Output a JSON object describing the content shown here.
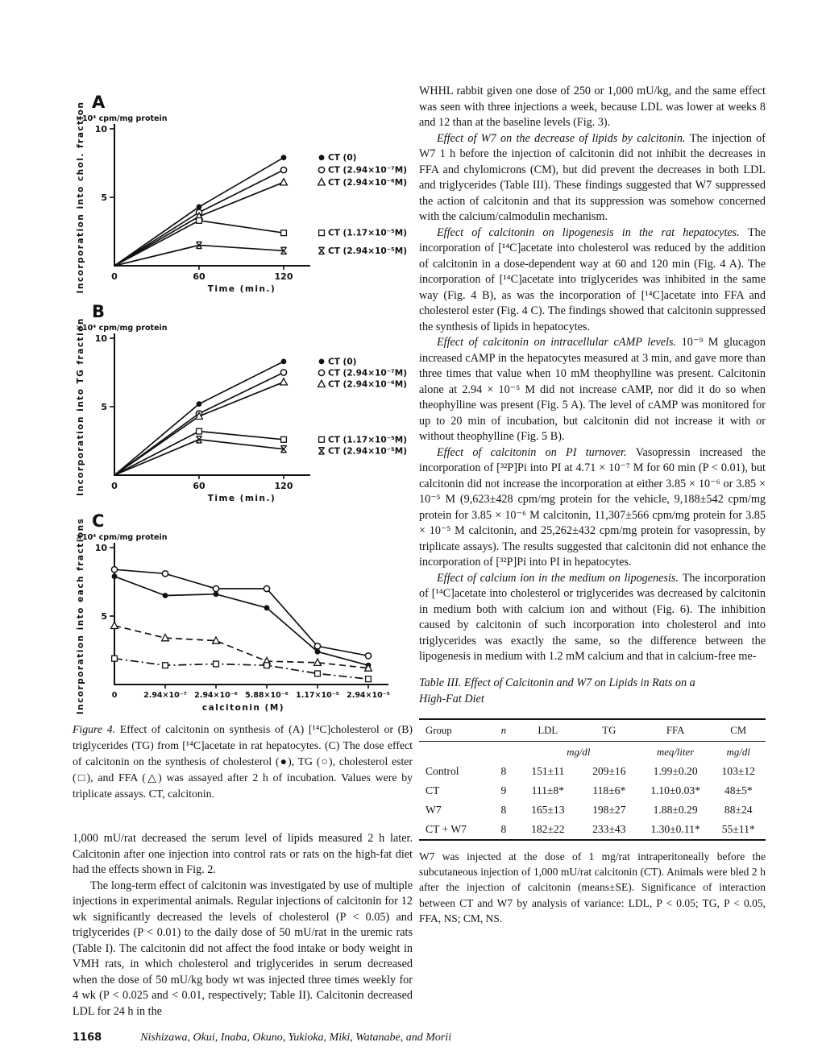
{
  "chart_data": [
    {
      "type": "line",
      "panel": "A",
      "unit_label": "×10⁴ cpm/mg protein",
      "ylabel": "Incorporation into chol. fraction",
      "xlabel": "Time (min.)",
      "x": [
        0,
        60,
        120
      ],
      "xtick_labels": [
        "0",
        "60",
        "120"
      ],
      "ylim": [
        0,
        10
      ],
      "yticks": [
        5,
        10
      ],
      "grid": false,
      "legend_position": "end-of-line",
      "series": [
        {
          "label": "CT (0)",
          "marker": "filled-circle",
          "line": "solid",
          "values": [
            0,
            4.3,
            7.9
          ]
        },
        {
          "label": "CT (2.94×10⁻⁷M)",
          "marker": "open-circle",
          "line": "solid",
          "values": [
            0,
            3.9,
            7.0
          ]
        },
        {
          "label": "CT (2.94×10⁻⁶M)",
          "marker": "open-triangle",
          "line": "solid",
          "values": [
            0,
            3.6,
            6.1
          ]
        },
        {
          "label": "CT (1.17×10⁻⁵M)",
          "marker": "open-square",
          "line": "solid",
          "values": [
            0,
            3.3,
            2.4
          ]
        },
        {
          "label": "CT (2.94×10⁻⁵M)",
          "marker": "xbar",
          "line": "solid",
          "values": [
            0,
            1.5,
            1.1
          ]
        }
      ]
    },
    {
      "type": "line",
      "panel": "B",
      "unit_label": "×10⁴ cpm/mg protein",
      "ylabel": "Incorporation into TG fraction",
      "xlabel": "Time (min.)",
      "x": [
        0,
        60,
        120
      ],
      "xtick_labels": [
        "0",
        "60",
        "120"
      ],
      "ylim": [
        0,
        10
      ],
      "yticks": [
        5,
        10
      ],
      "grid": false,
      "legend_position": "end-of-line",
      "series": [
        {
          "label": "CT (0)",
          "marker": "filled-circle",
          "line": "solid",
          "values": [
            0,
            5.2,
            8.3
          ]
        },
        {
          "label": "CT (2.94×10⁻⁷M)",
          "marker": "open-circle",
          "line": "solid",
          "values": [
            0,
            4.5,
            7.5
          ]
        },
        {
          "label": "CT (2.94×10⁻⁶M)",
          "marker": "open-triangle",
          "line": "solid",
          "values": [
            0,
            4.3,
            6.8
          ]
        },
        {
          "label": "CT (1.17×10⁻⁵M)",
          "marker": "open-square",
          "line": "solid",
          "values": [
            0,
            3.2,
            2.6
          ]
        },
        {
          "label": "CT (2.94×10⁻⁵M)",
          "marker": "xbar",
          "line": "solid",
          "values": [
            0,
            2.6,
            1.9
          ]
        }
      ]
    },
    {
      "type": "line",
      "panel": "C",
      "unit_label": "×10⁴ cpm/mg protein",
      "ylabel": "Incorporation into each fractions",
      "xlabel": "calcitonin (M)",
      "xtick_labels": [
        "0",
        "2.94×10⁻⁷",
        "2.94×10⁻⁶",
        "5.88×10⁻⁶",
        "1.17×10⁻⁵",
        "2.94×10⁻⁵"
      ],
      "ylim": [
        0,
        10
      ],
      "yticks": [
        5,
        10
      ],
      "grid": false,
      "legend_position": "none",
      "series": [
        {
          "name": "TG",
          "marker": "open-circle",
          "line": "solid",
          "values": [
            8.4,
            8.1,
            7.0,
            7.0,
            2.8,
            2.1
          ]
        },
        {
          "name": "cholesterol",
          "marker": "filled-circle",
          "line": "solid",
          "values": [
            7.9,
            6.5,
            6.6,
            5.6,
            2.4,
            1.4
          ]
        },
        {
          "name": "FFA",
          "marker": "open-triangle",
          "line": "dashed",
          "values": [
            4.3,
            3.4,
            3.2,
            1.7,
            1.6,
            1.2
          ]
        },
        {
          "name": "cholesterol ester",
          "marker": "open-square",
          "line": "dashdot",
          "values": [
            1.9,
            1.4,
            1.5,
            1.4,
            0.8,
            0.4
          ]
        }
      ]
    }
  ],
  "figure_caption": {
    "lead": "Figure 4.",
    "text": "Effect of calcitonin on synthesis of (A) [¹⁴C]cholesterol or (B) triglycerides (TG) from [¹⁴C]acetate in rat hepatocytes. (C) The dose effect of calcitonin on the synthesis of cholesterol (●), TG (○), cholesterol ester (□), and FFA (△) was assayed after 2 h of incubation. Values were by triplicate assays. CT, calcitonin."
  },
  "left_column": {
    "paragraphs": [
      {
        "indent": false,
        "text": "1,000 mU/rat decreased the serum level of lipids measured 2 h later. Calcitonin after one injection into control rats or rats on the high-fat diet had the effects shown in Fig. 2."
      },
      {
        "indent": true,
        "text": "The long-term effect of calcitonin was investigated by use of multiple injections in experimental animals. Regular injections of calcitonin for 12 wk significantly decreased the levels of cholesterol (P < 0.05) and triglycerides (P < 0.01) to the daily dose of 50 mU/rat in the uremic rats (Table I). The calcitonin did not affect the food intake or body weight in VMH rats, in which cholesterol and triglycerides in serum decreased when the dose of 50 mU/kg body wt was injected three times weekly for 4 wk (P < 0.025 and < 0.01, respectively; Table II). Calcitonin decreased LDL for 24 h in the"
      }
    ]
  },
  "right_column": {
    "paragraphs": [
      {
        "indent": false,
        "text": "WHHL rabbit given one dose of 250 or 1,000 mU/kg, and the same effect was seen with three injections a week, because LDL was lower at weeks 8 and 12 than at the baseline levels (Fig. 3)."
      },
      {
        "indent": true,
        "lead": "Effect of W7 on the decrease of lipids by calcitonin.",
        "text": "The injection of W7 1 h before the injection of calcitonin did not inhibit the decreases in FFA and chylomicrons (CM), but did prevent the decreases in both LDL and triglycerides (Table III). These findings suggested that W7 suppressed the action of calcitonin and that its suppression was somehow concerned with the calcium/calmodulin mechanism."
      },
      {
        "indent": true,
        "lead": "Effect of calcitonin on lipogenesis in the rat hepatocytes.",
        "text": "The incorporation of [¹⁴C]acetate into cholesterol was reduced by the addition of calcitonin in a dose-dependent way at 60 and 120 min (Fig. 4 A). The incorporation of [¹⁴C]acetate into triglycerides was inhibited in the same way (Fig. 4 B), as was the incorporation of [¹⁴C]acetate into FFA and cholesterol ester (Fig. 4 C). The findings showed that calcitonin suppressed the synthesis of lipids in hepatocytes."
      },
      {
        "indent": true,
        "lead": "Effect of calcitonin on intracellular cAMP levels.",
        "text": "10⁻⁹ M glucagon increased cAMP in the hepatocytes measured at 3 min, and gave more than three times that value when 10 mM theophylline was present. Calcitonin alone at 2.94 × 10⁻⁵ M did not increase cAMP, nor did it do so when theophylline was present (Fig. 5 A). The level of cAMP was monitored for up to 20 min of incubation, but calcitonin did not increase it with or without theophylline (Fig. 5 B)."
      },
      {
        "indent": true,
        "lead": "Effect of calcitonin on PI turnover.",
        "text": "Vasopressin increased the incorporation of [³²P]Pi into PI at 4.71 × 10⁻⁷ M for 60 min (P < 0.01), but calcitonin did not increase the incorporation at either 3.85 × 10⁻⁶ or 3.85 × 10⁻⁵ M (9,623±428 cpm/mg protein for the vehicle, 9,188±542 cpm/mg protein for 3.85 × 10⁻⁶ M calcitonin, 11,307±566 cpm/mg protein for 3.85 × 10⁻⁵ M calcitonin, and 25,262±432 cpm/mg protein for vasopressin, by triplicate assays). The results suggested that calcitonin did not enhance the incorporation of [³²P]Pi into PI in hepatocytes."
      },
      {
        "indent": true,
        "lead": "Effect of calcium ion in the medium on lipogenesis.",
        "text": "The incorporation of [¹⁴C]acetate into cholesterol or triglycerides was decreased by calcitonin in medium both with calcium ion and without (Fig. 6). The inhibition caused by calcitonin of such incorporation into cholesterol and into triglycerides was exactly the same, so the difference between the lipogenesis in medium with 1.2 mM calcium and that in calcium-free me-"
      }
    ]
  },
  "table": {
    "title": "Table III. Effect of Calcitonin and W7 on Lipids in Rats on a High-Fat Diet",
    "columns": [
      "Group",
      "n",
      "LDL",
      "TG",
      "FFA",
      "CM"
    ],
    "units_row": [
      {
        "span": 1,
        "text": ""
      },
      {
        "span": 1,
        "text": ""
      },
      {
        "span": 2,
        "text": "mg/dl"
      },
      {
        "span": 1,
        "text": "meq/liter"
      },
      {
        "span": 1,
        "text": "mg/dl"
      }
    ],
    "rows": [
      [
        "Control",
        "8",
        "151±11",
        "209±16",
        "1.99±0.20",
        "103±12"
      ],
      [
        "CT",
        "9",
        "111±8*",
        "118±6*",
        "1.10±0.03*",
        "48±5*"
      ],
      [
        "W7",
        "8",
        "165±13",
        "198±27",
        "1.88±0.29",
        "88±24"
      ],
      [
        "CT + W7",
        "8",
        "182±22",
        "233±43",
        "1.30±0.11*",
        "55±11*"
      ]
    ],
    "footnote": "W7 was injected at the dose of 1 mg/rat intraperitoneally before the subcutaneous injection of 1,000 mU/rat calcitonin (CT). Animals were bled 2 h after the injection of calcitonin (means±SE). Significance of interaction between CT and W7 by analysis of variance: LDL, P < 0.05; TG, P < 0.05, FFA, NS; CM, NS."
  },
  "footer": {
    "page_number": "1168",
    "authors": "Nishizawa, Okui, Inaba, Okuno, Yukioka, Miki, Watanabe, and Morii"
  }
}
